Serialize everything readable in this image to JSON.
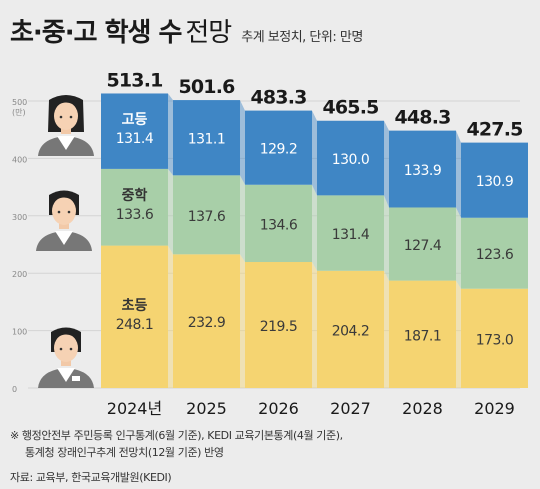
{
  "header": {
    "title_main": "초·중·고 학생 수",
    "title_sub": "전망",
    "note": "추계 보정치, 단위: 만명"
  },
  "footnotes": {
    "line1": "※ 행정안전부 주민등록 인구통계(6월 기준), KEDI 교육기본통계(4월 기준),",
    "line2": "통계청 장래인구추계 전망치(12월 기준) 반영",
    "source": "자료: 교육부, 한국교육개발원(KEDI)"
  },
  "chart_data": {
    "type": "bar",
    "stacked": true,
    "categories": [
      "2024년",
      "2025",
      "2026",
      "2027",
      "2028",
      "2029"
    ],
    "totals": [
      "513.1",
      "501.6",
      "483.3",
      "465.5",
      "448.3",
      "427.5"
    ],
    "series": [
      {
        "name": "초등",
        "values": [
          248.1,
          232.9,
          219.5,
          204.2,
          187.1,
          173.0
        ],
        "labels": [
          "248.1",
          "232.9",
          "219.5",
          "204.2",
          "187.1",
          "173.0"
        ],
        "color": "#f5d471"
      },
      {
        "name": "중학",
        "values": [
          133.6,
          137.6,
          134.6,
          131.4,
          127.4,
          123.6
        ],
        "labels": [
          "133.6",
          "137.6",
          "134.6",
          "131.4",
          "127.4",
          "123.6"
        ],
        "color": "#a8cfa8"
      },
      {
        "name": "고등",
        "values": [
          131.4,
          131.1,
          129.2,
          130.0,
          133.9,
          130.9
        ],
        "labels": [
          "131.4",
          "131.1",
          "129.2",
          "130.0",
          "133.9",
          "130.9"
        ],
        "color": "#3f86c5"
      }
    ],
    "yticks": [
      "500",
      "400",
      "300",
      "200",
      "100",
      "0"
    ],
    "yunit": "(만)",
    "ylim": [
      0,
      525
    ],
    "grid": true,
    "legend": "inline-first-bar"
  }
}
